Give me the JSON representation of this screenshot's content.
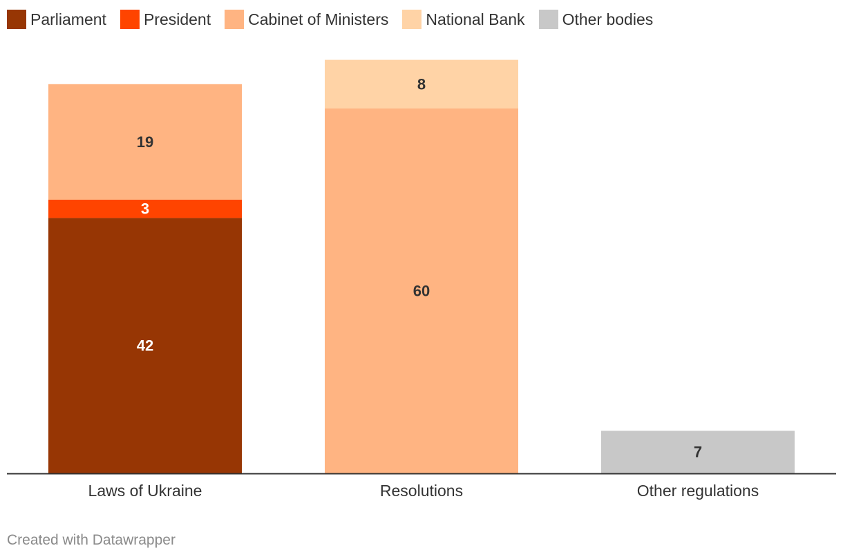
{
  "chart_data": {
    "type": "bar",
    "stacked": true,
    "categories": [
      "Laws of Ukraine",
      "Resolutions",
      "Other regulations"
    ],
    "series": [
      {
        "name": "Parliament",
        "color": "#973604",
        "label_color": "#ffffff",
        "values": [
          42,
          0,
          0
        ]
      },
      {
        "name": "President",
        "color": "#ff4400",
        "label_color": "#ffffff",
        "values": [
          3,
          0,
          0
        ]
      },
      {
        "name": "Cabinet of Ministers",
        "color": "#ffb482",
        "label_color": "#333333",
        "values": [
          19,
          60,
          0
        ]
      },
      {
        "name": "National Bank",
        "color": "#ffd3a6",
        "label_color": "#333333",
        "values": [
          0,
          8,
          0
        ]
      },
      {
        "name": "Other bodies",
        "color": "#c8c8c8",
        "label_color": "#333333",
        "values": [
          0,
          0,
          7
        ]
      }
    ],
    "ylim": [
      0,
      68
    ],
    "grid": false,
    "legend_position": "top-left"
  },
  "footer": {
    "credit": "Created with Datawrapper"
  }
}
